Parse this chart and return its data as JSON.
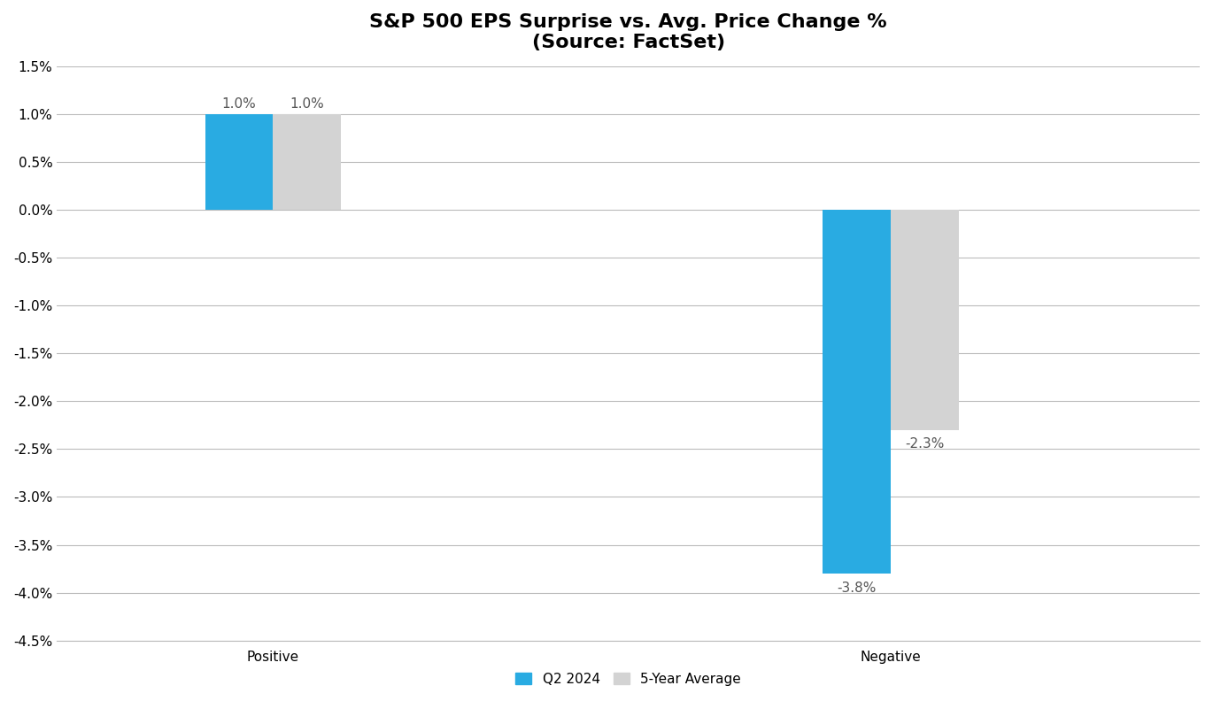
{
  "title_line1": "S&P 500 EPS Surprise vs. Avg. Price Change %",
  "title_line2": "(Source: FactSet)",
  "categories": [
    "Positive",
    "Negative"
  ],
  "q2_2024": [
    1.0,
    -3.8
  ],
  "five_year_avg": [
    1.0,
    -2.3
  ],
  "bar_color_q2": "#29ABE2",
  "bar_color_5yr": "#D3D3D3",
  "ylim": [
    -4.5,
    1.5
  ],
  "yticks": [
    -4.5,
    -4.0,
    -3.5,
    -3.0,
    -2.5,
    -2.0,
    -1.5,
    -1.0,
    -0.5,
    0.0,
    0.5,
    1.0,
    1.5
  ],
  "ytick_labels": [
    "-4.5%",
    "-4.0%",
    "-3.5%",
    "-3.0%",
    "-2.5%",
    "-2.0%",
    "-1.5%",
    "-1.0%",
    "-0.5%",
    "0.0%",
    "0.5%",
    "1.0%",
    "1.5%"
  ],
  "legend_q2": "Q2 2024",
  "legend_5yr": "5-Year Average",
  "bar_width": 0.22,
  "group_positions": [
    1.0,
    3.0
  ],
  "background_color": "#FFFFFF",
  "title_fontsize": 16,
  "label_fontsize": 11,
  "tick_fontsize": 11,
  "annotation_fontsize": 11,
  "xlim": [
    0.3,
    4.0
  ]
}
